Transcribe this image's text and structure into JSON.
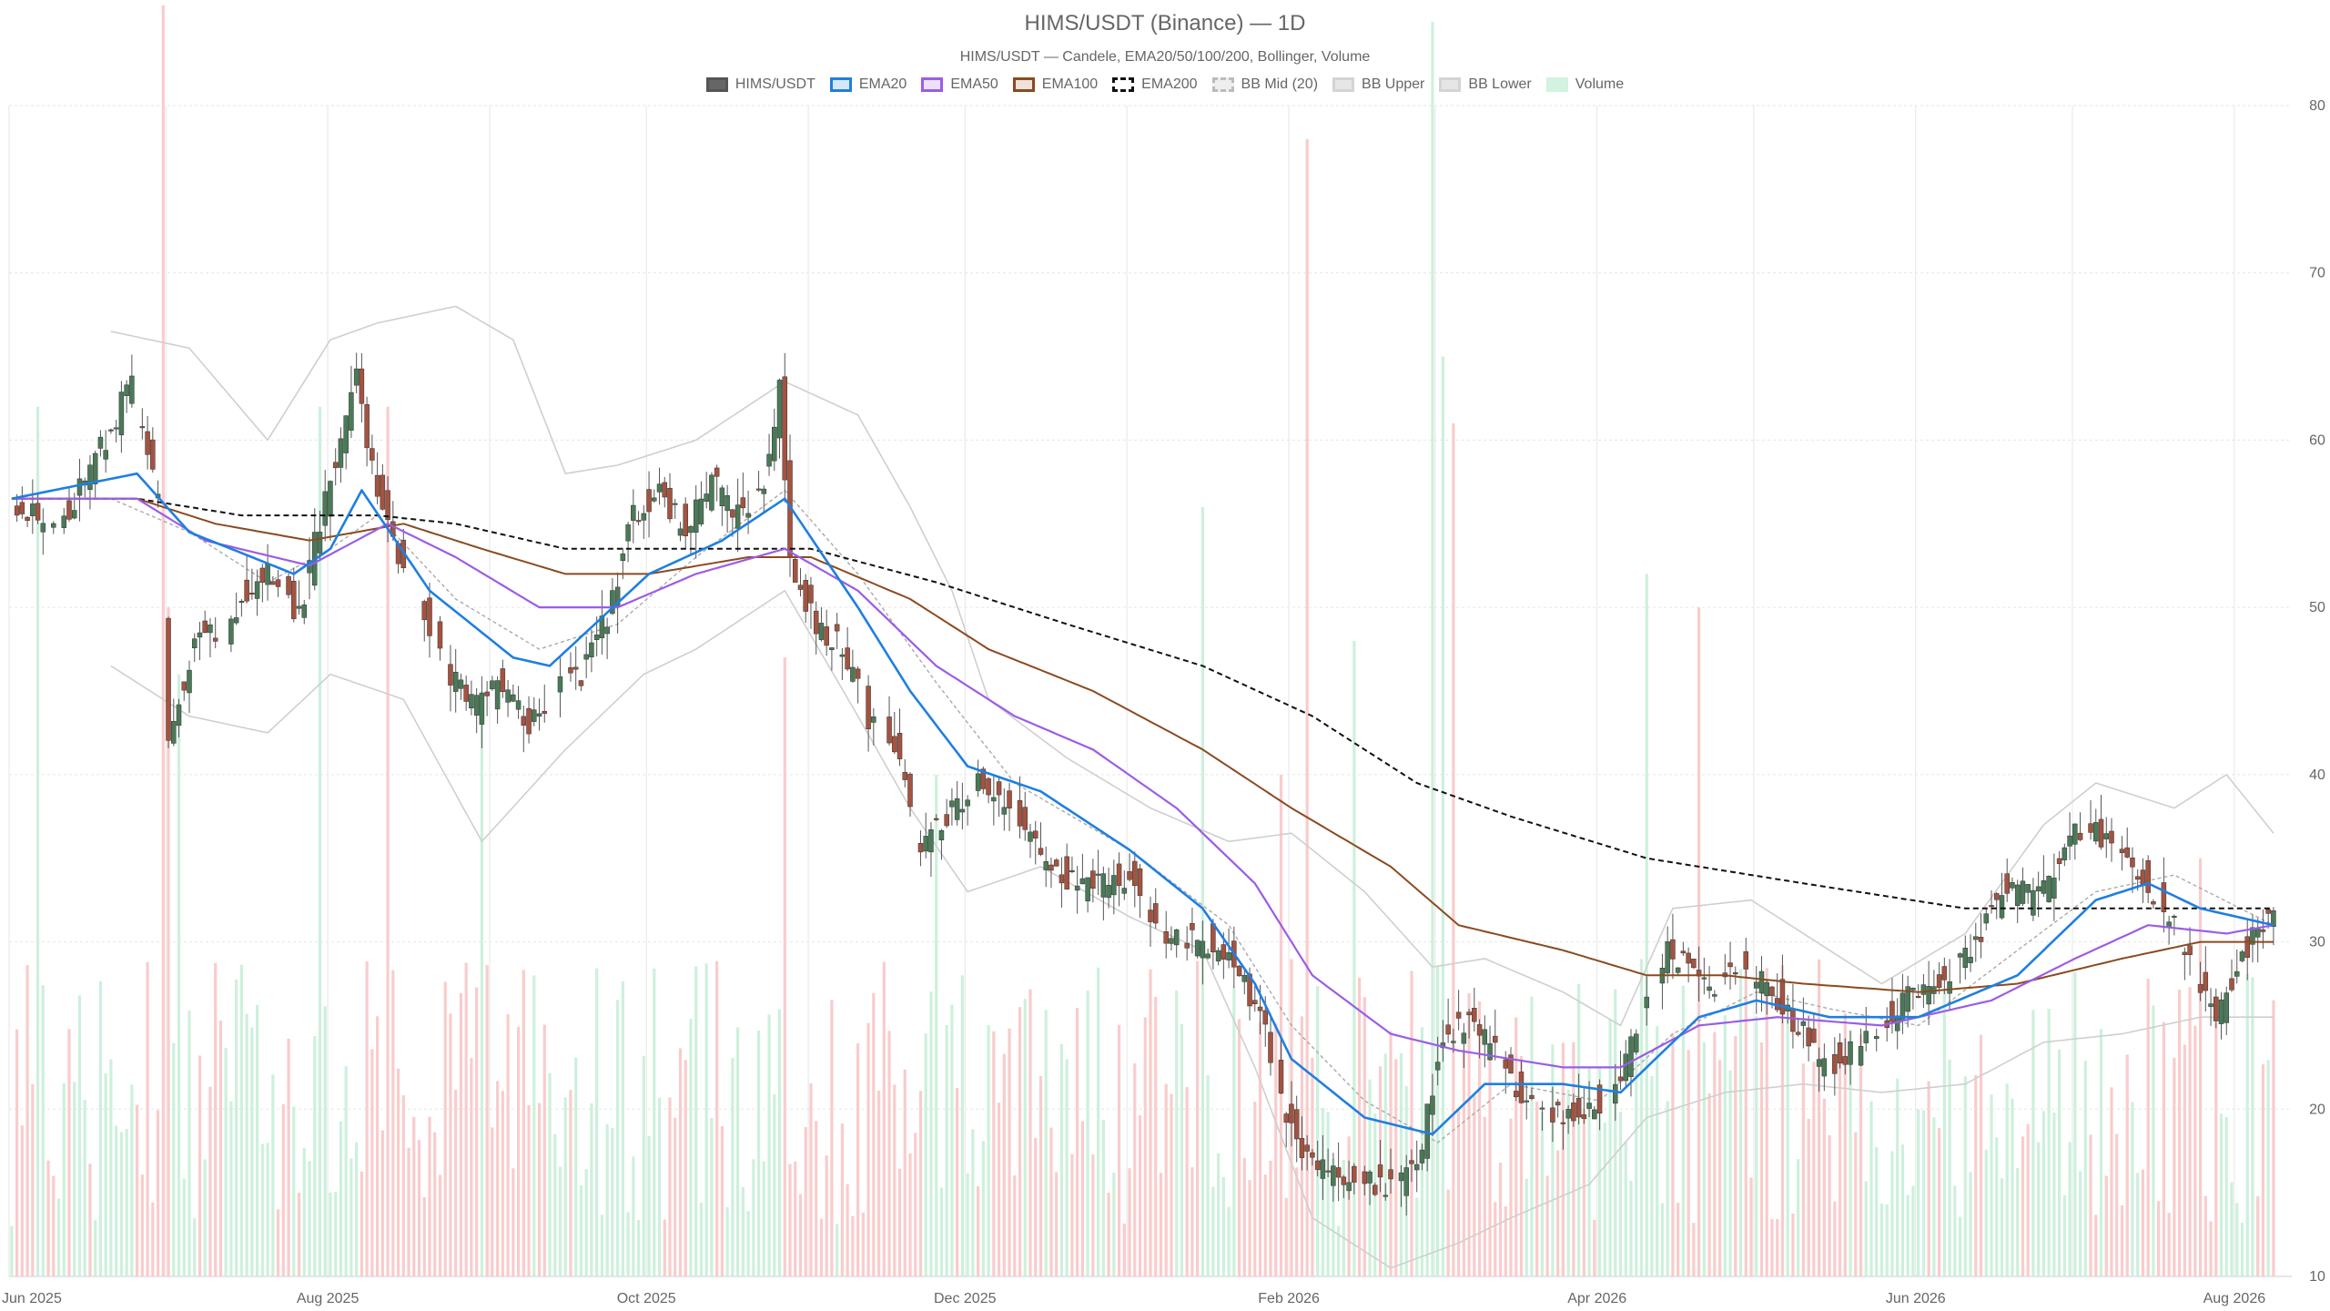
{
  "chart_data": {
    "type": "candlestick",
    "title": "HIMS/USDT (Binance) — 1D",
    "subtitle": "HIMS/USDT — Candele, EMA20/50/100/200, Bollinger, Volume",
    "legend": [
      {
        "name": "HIMS/USDT",
        "key": "candles",
        "fill": "#666666",
        "stroke": "#555555",
        "dash": false
      },
      {
        "name": "EMA20",
        "key": "ema20",
        "fill": "#d6e8f7",
        "stroke": "#1f7fe0",
        "dash": false
      },
      {
        "name": "EMA50",
        "key": "ema50",
        "fill": "#ece1f9",
        "stroke": "#9b5de5",
        "dash": false
      },
      {
        "name": "EMA100",
        "key": "ema100",
        "fill": "#f1e2d9",
        "stroke": "#8b4a20",
        "dash": false
      },
      {
        "name": "EMA200",
        "key": "ema200",
        "fill": "#ffffff",
        "stroke": "#111111",
        "dash": true
      },
      {
        "name": "BB Mid (20)",
        "key": "bb_mid",
        "fill": "#eeeeee",
        "stroke": "#bbbbbb",
        "dash": true
      },
      {
        "name": "BB Upper",
        "key": "bb_upper",
        "fill": "#e6e6e6",
        "stroke": "#d4d4d4",
        "dash": false
      },
      {
        "name": "BB Lower",
        "key": "bb_lower",
        "fill": "#e6e6e6",
        "stroke": "#d4d4d4",
        "dash": false
      },
      {
        "name": "Volume",
        "key": "volume",
        "fill": "#d3f2e0",
        "stroke": "#d3f2e0",
        "dash": false
      }
    ],
    "x_ticks": [
      "Jun 2025",
      "Aug 2025",
      "Oct 2025",
      "Dec 2025",
      "Feb 2026",
      "Apr 2026",
      "Jun 2026",
      "Aug 2026"
    ],
    "y_ticks": [
      10,
      20,
      30,
      40,
      50,
      60,
      70,
      80
    ],
    "y_range": [
      10,
      80
    ],
    "y_axis_side": "right",
    "grid": true,
    "price_path": [
      [
        "2025-06-01",
        56.5
      ],
      [
        "2025-06-06",
        55.5
      ],
      [
        "2025-06-12",
        56.0
      ],
      [
        "2025-06-18",
        59.5
      ],
      [
        "2025-06-24",
        63.5
      ],
      [
        "2025-06-29",
        56.0
      ],
      [
        "2025-07-01",
        42.5
      ],
      [
        "2025-07-06",
        48.0
      ],
      [
        "2025-07-11",
        48.5
      ],
      [
        "2025-07-16",
        51.0
      ],
      [
        "2025-07-21",
        52.0
      ],
      [
        "2025-07-26",
        49.5
      ],
      [
        "2025-07-31",
        56.5
      ],
      [
        "2025-08-03",
        59.5
      ],
      [
        "2025-08-06",
        64.0
      ],
      [
        "2025-08-09",
        58.0
      ],
      [
        "2025-08-14",
        53.0
      ],
      [
        "2025-08-19",
        49.5
      ],
      [
        "2025-08-24",
        46.0
      ],
      [
        "2025-08-29",
        44.0
      ],
      [
        "2025-09-03",
        45.5
      ],
      [
        "2025-09-08",
        43.0
      ],
      [
        "2025-09-13",
        45.0
      ],
      [
        "2025-09-18",
        46.0
      ],
      [
        "2025-09-23",
        49.5
      ],
      [
        "2025-09-28",
        55.5
      ],
      [
        "2025-10-03",
        57.0
      ],
      [
        "2025-10-08",
        54.5
      ],
      [
        "2025-10-13",
        57.5
      ],
      [
        "2025-10-18",
        55.5
      ],
      [
        "2025-10-23",
        57.5
      ],
      [
        "2025-10-26",
        63.0
      ],
      [
        "2025-10-28",
        52.5
      ],
      [
        "2025-11-02",
        49.0
      ],
      [
        "2025-11-07",
        47.5
      ],
      [
        "2025-11-12",
        43.5
      ],
      [
        "2025-11-17",
        41.5
      ],
      [
        "2025-11-22",
        35.5
      ],
      [
        "2025-11-27",
        37.5
      ],
      [
        "2025-12-02",
        39.5
      ],
      [
        "2025-12-07",
        38.5
      ],
      [
        "2025-12-12",
        36.5
      ],
      [
        "2025-12-17",
        34.5
      ],
      [
        "2025-12-22",
        33.5
      ],
      [
        "2026-01-01",
        34.0
      ],
      [
        "2026-01-06",
        30.5
      ],
      [
        "2026-01-11",
        30.0
      ],
      [
        "2026-01-16",
        30.0
      ],
      [
        "2026-01-21",
        29.0
      ],
      [
        "2026-01-26",
        25.5
      ],
      [
        "2026-01-31",
        19.5
      ],
      [
        "2026-02-05",
        16.5
      ],
      [
        "2026-02-10",
        16.0
      ],
      [
        "2026-02-15",
        15.5
      ],
      [
        "2026-02-20",
        15.5
      ],
      [
        "2026-02-25",
        16.5
      ],
      [
        "2026-03-02",
        24.5
      ],
      [
        "2026-03-07",
        25.0
      ],
      [
        "2026-03-12",
        23.5
      ],
      [
        "2026-03-17",
        21.0
      ],
      [
        "2026-03-22",
        20.0
      ],
      [
        "2026-03-27",
        19.5
      ],
      [
        "2026-04-01",
        20.5
      ],
      [
        "2026-04-05",
        21.5
      ],
      [
        "2026-04-09",
        26.5
      ],
      [
        "2026-04-14",
        29.5
      ],
      [
        "2026-04-19",
        28.0
      ],
      [
        "2026-04-24",
        27.5
      ],
      [
        "2026-04-29",
        28.5
      ],
      [
        "2026-05-04",
        27.0
      ],
      [
        "2026-05-09",
        25.0
      ],
      [
        "2026-05-14",
        22.5
      ],
      [
        "2026-05-19",
        23.5
      ],
      [
        "2026-05-24",
        24.5
      ],
      [
        "2026-05-29",
        26.5
      ],
      [
        "2026-06-03",
        27.5
      ],
      [
        "2026-06-08",
        28.0
      ],
      [
        "2026-06-13",
        30.5
      ],
      [
        "2026-06-18",
        33.5
      ],
      [
        "2026-06-23",
        32.5
      ],
      [
        "2026-06-28",
        34.5
      ],
      [
        "2026-07-03",
        37.5
      ],
      [
        "2026-07-08",
        35.5
      ],
      [
        "2026-07-13",
        34.5
      ],
      [
        "2026-07-18",
        32.0
      ],
      [
        "2026-07-23",
        29.0
      ],
      [
        "2026-07-28",
        25.5
      ],
      [
        "2026-08-01",
        28.5
      ],
      [
        "2026-08-04",
        30.5
      ],
      [
        "2026-08-08",
        31.5
      ]
    ],
    "ema20": [
      [
        "2025-06-01",
        56.5
      ],
      [
        "2025-06-25",
        58.0
      ],
      [
        "2025-07-05",
        54.5
      ],
      [
        "2025-07-25",
        52.0
      ],
      [
        "2025-08-01",
        53.5
      ],
      [
        "2025-08-07",
        57.0
      ],
      [
        "2025-08-20",
        51.0
      ],
      [
        "2025-09-05",
        47.0
      ],
      [
        "2025-09-12",
        46.5
      ],
      [
        "2025-10-01",
        52.0
      ],
      [
        "2025-10-15",
        54.0
      ],
      [
        "2025-10-27",
        56.5
      ],
      [
        "2025-11-10",
        50.0
      ],
      [
        "2025-11-20",
        45.0
      ],
      [
        "2025-12-01",
        40.5
      ],
      [
        "2025-12-15",
        39.0
      ],
      [
        "2026-01-01",
        35.5
      ],
      [
        "2026-01-15",
        32.0
      ],
      [
        "2026-01-25",
        27.5
      ],
      [
        "2026-02-01",
        23.0
      ],
      [
        "2026-02-15",
        19.5
      ],
      [
        "2026-02-28",
        18.5
      ],
      [
        "2026-03-10",
        21.5
      ],
      [
        "2026-03-25",
        21.5
      ],
      [
        "2026-04-05",
        21.0
      ],
      [
        "2026-04-20",
        25.5
      ],
      [
        "2026-05-01",
        26.5
      ],
      [
        "2026-05-15",
        25.5
      ],
      [
        "2026-06-01",
        25.5
      ],
      [
        "2026-06-20",
        28.0
      ],
      [
        "2026-07-05",
        32.5
      ],
      [
        "2026-07-15",
        33.5
      ],
      [
        "2026-07-25",
        32.0
      ],
      [
        "2026-08-08",
        31.0
      ]
    ],
    "ema50": [
      [
        "2025-06-01",
        56.5
      ],
      [
        "2025-06-25",
        56.5
      ],
      [
        "2025-07-08",
        54.0
      ],
      [
        "2025-07-28",
        52.5
      ],
      [
        "2025-08-12",
        55.0
      ],
      [
        "2025-08-25",
        53.0
      ],
      [
        "2025-09-10",
        50.0
      ],
      [
        "2025-09-25",
        50.0
      ],
      [
        "2025-10-10",
        52.0
      ],
      [
        "2025-10-27",
        53.5
      ],
      [
        "2025-11-10",
        51.0
      ],
      [
        "2025-11-25",
        46.5
      ],
      [
        "2025-12-10",
        43.5
      ],
      [
        "2025-12-25",
        41.5
      ],
      [
        "2026-01-10",
        38.0
      ],
      [
        "2026-01-25",
        33.5
      ],
      [
        "2026-02-05",
        28.0
      ],
      [
        "2026-02-20",
        24.5
      ],
      [
        "2026-03-05",
        23.5
      ],
      [
        "2026-03-25",
        22.5
      ],
      [
        "2026-04-05",
        22.5
      ],
      [
        "2026-04-20",
        25.0
      ],
      [
        "2026-05-05",
        25.5
      ],
      [
        "2026-05-25",
        25.0
      ],
      [
        "2026-06-15",
        26.5
      ],
      [
        "2026-07-01",
        29.0
      ],
      [
        "2026-07-15",
        31.0
      ],
      [
        "2026-07-30",
        30.5
      ],
      [
        "2026-08-08",
        31.0
      ]
    ],
    "ema100": [
      [
        "2025-06-01",
        56.5
      ],
      [
        "2025-06-25",
        56.5
      ],
      [
        "2025-07-10",
        55.0
      ],
      [
        "2025-07-28",
        54.0
      ],
      [
        "2025-08-15",
        55.0
      ],
      [
        "2025-08-30",
        53.5
      ],
      [
        "2025-09-15",
        52.0
      ],
      [
        "2025-10-01",
        52.0
      ],
      [
        "2025-10-20",
        53.0
      ],
      [
        "2025-11-01",
        53.0
      ],
      [
        "2025-11-20",
        50.5
      ],
      [
        "2025-12-05",
        47.5
      ],
      [
        "2025-12-25",
        45.0
      ],
      [
        "2026-01-15",
        41.5
      ],
      [
        "2026-02-01",
        38.0
      ],
      [
        "2026-02-20",
        34.5
      ],
      [
        "2026-03-05",
        31.0
      ],
      [
        "2026-03-25",
        29.5
      ],
      [
        "2026-04-10",
        28.0
      ],
      [
        "2026-04-25",
        28.0
      ],
      [
        "2026-05-10",
        27.5
      ],
      [
        "2026-06-01",
        27.0
      ],
      [
        "2026-06-20",
        27.5
      ],
      [
        "2026-07-10",
        29.0
      ],
      [
        "2026-07-25",
        30.0
      ],
      [
        "2026-08-08",
        30.0
      ]
    ],
    "ema200": [
      [
        "2025-06-01",
        56.5
      ],
      [
        "2025-06-25",
        56.5
      ],
      [
        "2025-07-15",
        55.5
      ],
      [
        "2025-08-10",
        55.5
      ],
      [
        "2025-08-25",
        55.0
      ],
      [
        "2025-09-15",
        53.5
      ],
      [
        "2025-10-10",
        53.5
      ],
      [
        "2025-11-01",
        53.5
      ],
      [
        "2025-11-25",
        51.5
      ],
      [
        "2025-12-20",
        49.0
      ],
      [
        "2026-01-15",
        46.5
      ],
      [
        "2026-02-05",
        43.5
      ],
      [
        "2026-02-25",
        39.5
      ],
      [
        "2026-03-15",
        37.5
      ],
      [
        "2026-04-10",
        35.0
      ],
      [
        "2026-05-10",
        33.5
      ],
      [
        "2026-06-10",
        32.0
      ],
      [
        "2026-07-10",
        32.0
      ],
      [
        "2026-08-08",
        32.0
      ]
    ],
    "bb_upper": [
      [
        "2025-06-20",
        66.5
      ],
      [
        "2025-07-05",
        65.5
      ],
      [
        "2025-07-20",
        60.0
      ],
      [
        "2025-08-01",
        66.0
      ],
      [
        "2025-08-10",
        67.0
      ],
      [
        "2025-08-25",
        68.0
      ],
      [
        "2025-09-05",
        66.0
      ],
      [
        "2025-09-15",
        58.0
      ],
      [
        "2025-09-25",
        58.5
      ],
      [
        "2025-10-10",
        60.0
      ],
      [
        "2025-10-27",
        63.5
      ],
      [
        "2025-11-10",
        61.5
      ],
      [
        "2025-11-20",
        56.0
      ],
      [
        "2025-11-28",
        51.0
      ],
      [
        "2025-12-05",
        44.5
      ],
      [
        "2025-12-20",
        41.0
      ],
      [
        "2026-01-05",
        38.0
      ],
      [
        "2026-01-20",
        36.0
      ],
      [
        "2026-02-01",
        36.5
      ],
      [
        "2026-02-15",
        33.0
      ],
      [
        "2026-02-28",
        28.5
      ],
      [
        "2026-03-10",
        29.0
      ],
      [
        "2026-03-25",
        27.0
      ],
      [
        "2026-04-05",
        25.0
      ],
      [
        "2026-04-15",
        32.0
      ],
      [
        "2026-04-30",
        32.5
      ],
      [
        "2026-05-10",
        30.5
      ],
      [
        "2026-05-25",
        27.5
      ],
      [
        "2026-06-10",
        30.5
      ],
      [
        "2026-06-25",
        37.0
      ],
      [
        "2026-07-05",
        39.5
      ],
      [
        "2026-07-20",
        38.0
      ],
      [
        "2026-07-30",
        40.0
      ],
      [
        "2026-08-08",
        36.5
      ]
    ],
    "bb_lower": [
      [
        "2025-06-20",
        46.5
      ],
      [
        "2025-07-05",
        43.5
      ],
      [
        "2025-07-20",
        42.5
      ],
      [
        "2025-08-01",
        46.0
      ],
      [
        "2025-08-15",
        44.5
      ],
      [
        "2025-08-30",
        36.0
      ],
      [
        "2025-09-15",
        41.5
      ],
      [
        "2025-09-30",
        46.0
      ],
      [
        "2025-10-10",
        47.5
      ],
      [
        "2025-10-27",
        51.0
      ],
      [
        "2025-11-10",
        43.5
      ],
      [
        "2025-11-20",
        38.0
      ],
      [
        "2025-12-01",
        33.0
      ],
      [
        "2025-12-15",
        34.5
      ],
      [
        "2026-01-01",
        31.5
      ],
      [
        "2026-01-15",
        29.5
      ],
      [
        "2026-01-25",
        22.5
      ],
      [
        "2026-02-05",
        13.5
      ],
      [
        "2026-02-20",
        10.5
      ],
      [
        "2026-03-05",
        12.0
      ],
      [
        "2026-03-15",
        13.5
      ],
      [
        "2026-03-30",
        15.5
      ],
      [
        "2026-04-10",
        19.5
      ],
      [
        "2026-04-25",
        21.0
      ],
      [
        "2026-05-10",
        21.5
      ],
      [
        "2026-05-25",
        21.0
      ],
      [
        "2026-06-10",
        21.5
      ],
      [
        "2026-06-25",
        24.0
      ],
      [
        "2026-07-10",
        24.5
      ],
      [
        "2026-07-25",
        25.5
      ],
      [
        "2026-08-08",
        25.5
      ]
    ],
    "bb_mid": [
      [
        "2025-06-20",
        56.5
      ],
      [
        "2025-07-05",
        54.5
      ],
      [
        "2025-07-20",
        51.5
      ],
      [
        "2025-08-01",
        53.5
      ],
      [
        "2025-08-10",
        55.5
      ],
      [
        "2025-08-25",
        50.5
      ],
      [
        "2025-09-10",
        47.5
      ],
      [
        "2025-09-25",
        49.0
      ],
      [
        "2025-10-10",
        53.0
      ],
      [
        "2025-10-27",
        57.0
      ],
      [
        "2025-11-10",
        52.0
      ],
      [
        "2025-11-25",
        45.5
      ],
      [
        "2025-12-10",
        39.5
      ],
      [
        "2026-01-01",
        35.5
      ],
      [
        "2026-01-20",
        31.0
      ],
      [
        "2026-02-01",
        25.0
      ],
      [
        "2026-02-15",
        20.5
      ],
      [
        "2026-03-01",
        18.0
      ],
      [
        "2026-03-15",
        21.5
      ],
      [
        "2026-04-01",
        20.5
      ],
      [
        "2026-04-15",
        24.5
      ],
      [
        "2026-05-01",
        27.0
      ],
      [
        "2026-05-15",
        26.0
      ],
      [
        "2026-06-01",
        25.0
      ],
      [
        "2026-06-20",
        29.5
      ],
      [
        "2026-07-05",
        33.0
      ],
      [
        "2026-07-20",
        34.0
      ],
      [
        "2026-08-08",
        31.0
      ]
    ],
    "volume_spikes": [
      [
        "2025-06-06",
        52
      ],
      [
        "2025-06-30",
        76
      ],
      [
        "2025-07-01",
        40
      ],
      [
        "2025-07-03",
        36
      ],
      [
        "2025-07-30",
        52
      ],
      [
        "2025-08-12",
        52
      ],
      [
        "2025-08-30",
        35
      ],
      [
        "2025-10-27",
        37
      ],
      [
        "2025-11-25",
        30
      ],
      [
        "2026-01-15",
        46
      ],
      [
        "2026-01-30",
        30
      ],
      [
        "2026-02-04",
        68
      ],
      [
        "2026-02-13",
        38
      ],
      [
        "2026-02-28",
        75
      ],
      [
        "2026-03-02",
        55
      ],
      [
        "2026-03-04",
        51
      ],
      [
        "2026-04-10",
        42
      ],
      [
        "2026-04-20",
        40
      ],
      [
        "2026-07-25",
        25
      ]
    ]
  }
}
